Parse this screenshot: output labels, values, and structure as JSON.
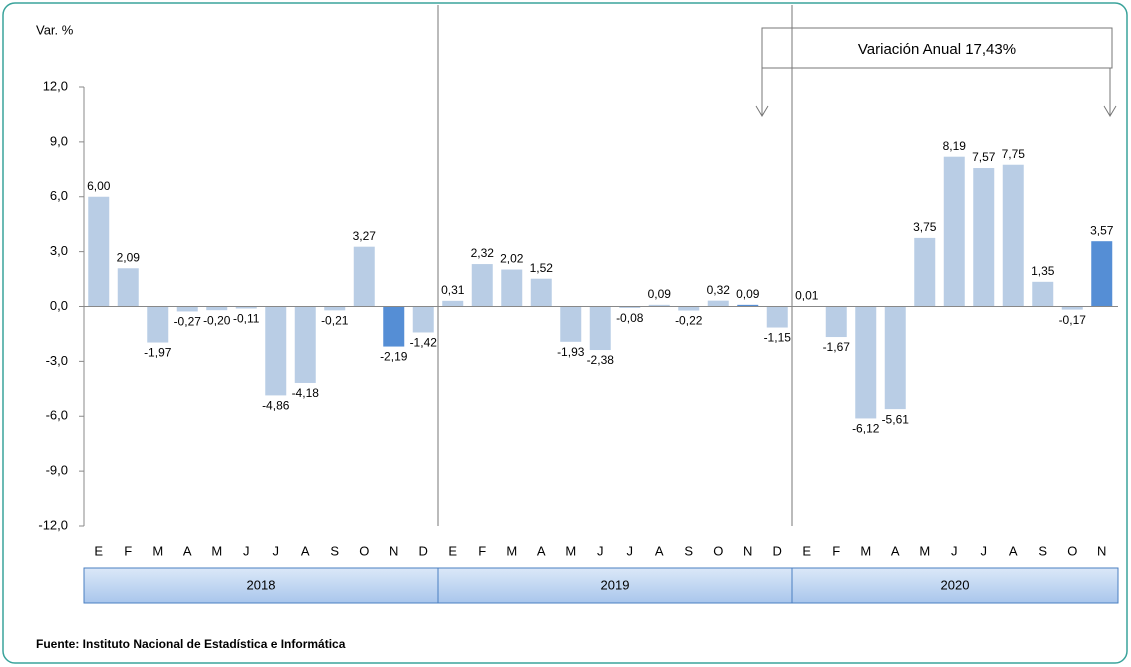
{
  "chart_data": {
    "type": "bar",
    "y_label": "Var. %",
    "annotation": "Variación Anual  17,43%",
    "source": "Fuente: Instituto Nacional de Estadística e Informática",
    "ylim": [
      -12,
      12
    ],
    "yticks": [
      {
        "value": -12,
        "label": "-12,0"
      },
      {
        "value": -9,
        "label": "-9,0"
      },
      {
        "value": -6,
        "label": "-6,0"
      },
      {
        "value": -3,
        "label": "-3,0"
      },
      {
        "value": 0,
        "label": "0,0"
      },
      {
        "value": 3,
        "label": "3,0"
      },
      {
        "value": 6,
        "label": "6,0"
      },
      {
        "value": 9,
        "label": "9,0"
      },
      {
        "value": 12,
        "label": "12,0"
      }
    ],
    "groups": [
      {
        "name": "2018",
        "categories": [
          "E",
          "F",
          "M",
          "A",
          "M",
          "J",
          "J",
          "A",
          "S",
          "O",
          "N",
          "D"
        ],
        "values": [
          6.0,
          2.09,
          -1.97,
          -0.27,
          -0.2,
          -0.11,
          -4.86,
          -4.18,
          -0.21,
          3.27,
          -2.19,
          -1.42
        ],
        "value_labels": [
          "6,00",
          "2,09",
          "-1,97",
          "-0,27",
          "-0,20",
          "-0,11",
          "-4,86",
          "-4,18",
          "-0,21",
          "3,27",
          "-2,19",
          "-1,42"
        ],
        "colors": [
          "#b9cde5",
          "#b9cde5",
          "#b9cde5",
          "#b9cde5",
          "#b9cde5",
          "#b9cde5",
          "#b9cde5",
          "#b9cde5",
          "#b9cde5",
          "#b9cde5",
          "#558ed5",
          "#b9cde5"
        ]
      },
      {
        "name": "2019",
        "categories": [
          "E",
          "F",
          "M",
          "A",
          "M",
          "J",
          "J",
          "A",
          "S",
          "O",
          "N",
          "D"
        ],
        "values": [
          0.31,
          2.32,
          2.02,
          1.52,
          -1.93,
          -2.38,
          -0.08,
          0.09,
          -0.22,
          0.32,
          0.09,
          -1.15
        ],
        "value_labels": [
          "0,31",
          "2,32",
          "2,02",
          "1,52",
          "-1,93",
          "-2,38",
          "-0,08",
          "0,09",
          "-0,22",
          "0,32",
          "0,09",
          "-1,15"
        ],
        "colors": [
          "#b9cde5",
          "#b9cde5",
          "#b9cde5",
          "#b9cde5",
          "#b9cde5",
          "#b9cde5",
          "#b9cde5",
          "#b9cde5",
          "#b9cde5",
          "#b9cde5",
          "#558ed5",
          "#b9cde5"
        ]
      },
      {
        "name": "2020",
        "categories": [
          "E",
          "F",
          "M",
          "A",
          "M",
          "J",
          "J",
          "A",
          "S",
          "O",
          "N"
        ],
        "values": [
          0.01,
          -1.67,
          -6.12,
          -5.61,
          3.75,
          8.19,
          7.57,
          7.75,
          1.35,
          -0.17,
          3.57
        ],
        "value_labels": [
          "0,01",
          "-1,67",
          "-6,12",
          "-5,61",
          "3,75",
          "8,19",
          "7,57",
          "7,75",
          "1,35",
          "-0,17",
          "3,57"
        ],
        "colors": [
          "#b9cde5",
          "#b9cde5",
          "#b9cde5",
          "#b9cde5",
          "#b9cde5",
          "#b9cde5",
          "#b9cde5",
          "#b9cde5",
          "#b9cde5",
          "#b9cde5",
          "#558ed5"
        ]
      }
    ]
  }
}
